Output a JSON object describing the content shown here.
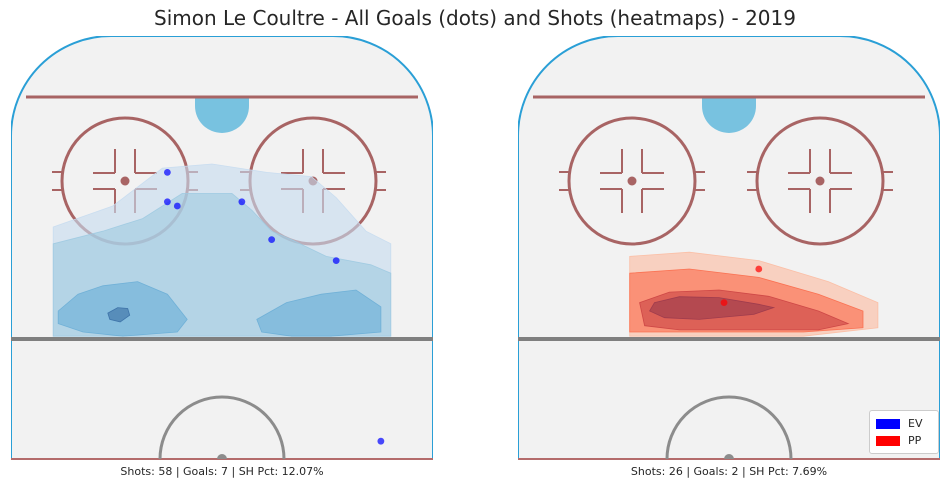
{
  "title": "Simon Le Coultre - All Goals (dots) and Shots (heatmaps) - 2019",
  "colors": {
    "EV": "#0000ff",
    "PP": "#ff0000"
  },
  "legend": {
    "entries": [
      {
        "label": "EV",
        "color": "#0000ff"
      },
      {
        "label": "PP",
        "color": "#ff0000"
      }
    ]
  },
  "captions": {
    "left": "Shots: 58 | Goals: 7 | SH Pct: 12.07%",
    "right": "Shots: 26 | Goals: 2 | SH Pct: 7.69%"
  },
  "chart_data": [
    {
      "type": "scatter",
      "panel": "left",
      "strength": "EV",
      "title": "",
      "shots": 58,
      "goals": 7,
      "sh_pct": 12.07,
      "xlim": [
        -42.5,
        42.5
      ],
      "ylim": [
        0,
        100
      ],
      "goal_points": [
        {
          "x": -11,
          "y": 68
        },
        {
          "x": -9,
          "y": 60
        },
        {
          "x": 4,
          "y": 61
        },
        {
          "x": 10,
          "y": 52
        },
        {
          "x": 23,
          "y": 47
        },
        {
          "x": 32,
          "y": 4
        },
        {
          "x": -11,
          "y": 61
        }
      ],
      "heat_levels": [
        {
          "level": 1,
          "color": "#c6dbef",
          "points": [
            [
              -34,
              55
            ],
            [
              -22,
              60
            ],
            [
              -12,
              69
            ],
            [
              -2,
              70
            ],
            [
              9,
              68
            ],
            [
              18,
              67
            ],
            [
              23,
              62
            ],
            [
              29,
              54
            ],
            [
              34,
              51
            ],
            [
              34,
              29
            ],
            [
              -34,
              29
            ]
          ]
        },
        {
          "level": 2,
          "color": "#9ecae1",
          "points": [
            [
              -34,
              51
            ],
            [
              -24,
              54
            ],
            [
              -16,
              57
            ],
            [
              -8,
              63
            ],
            [
              2,
              63
            ],
            [
              6,
              59
            ],
            [
              10,
              54
            ],
            [
              14,
              52
            ],
            [
              21,
              48
            ],
            [
              30,
              46
            ],
            [
              34,
              44
            ],
            [
              34,
              29
            ],
            [
              -34,
              29
            ]
          ]
        },
        {
          "level": 3,
          "color": "#6baed6",
          "points": [
            [
              -33,
              35
            ],
            [
              -29,
              39
            ],
            [
              -24,
              41
            ],
            [
              -17,
              42
            ],
            [
              -11,
              39
            ],
            [
              -7,
              33
            ],
            [
              -9,
              30
            ],
            [
              -20,
              29
            ],
            [
              -28,
              30
            ],
            [
              -33,
              32
            ]
          ]
        },
        {
          "level": 3,
          "color": "#6baed6",
          "points": [
            [
              7,
              33
            ],
            [
              13,
              37
            ],
            [
              20,
              39
            ],
            [
              27,
              40
            ],
            [
              32,
              36
            ],
            [
              32,
              30
            ],
            [
              22,
              29
            ],
            [
              14,
              29
            ],
            [
              8,
              30
            ]
          ]
        },
        {
          "level": 4,
          "color": "#3a6fa5",
          "points": [
            [
              -23,
              34.5
            ],
            [
              -21,
              35.8
            ],
            [
              -19,
              35.6
            ],
            [
              -18.6,
              34
            ],
            [
              -20.5,
              32.4
            ],
            [
              -22.6,
              33
            ]
          ]
        }
      ]
    },
    {
      "type": "scatter",
      "panel": "right",
      "strength": "PP",
      "title": "",
      "shots": 26,
      "goals": 2,
      "sh_pct": 7.69,
      "xlim": [
        -42.5,
        42.5
      ],
      "ylim": [
        0,
        100
      ],
      "goal_points": [
        {
          "x": 6,
          "y": 45
        },
        {
          "x": -1,
          "y": 37
        }
      ],
      "heat_levels": [
        {
          "level": 1,
          "color": "#fcbba1",
          "points": [
            [
              -20,
              48
            ],
            [
              -8,
              49
            ],
            [
              6,
              47
            ],
            [
              20,
              42
            ],
            [
              30,
              37
            ],
            [
              30,
              31
            ],
            [
              15,
              29
            ],
            [
              -20,
              29
            ]
          ]
        },
        {
          "level": 2,
          "color": "#fb6a4a",
          "points": [
            [
              -20,
              44
            ],
            [
              -8,
              45
            ],
            [
              6,
              43
            ],
            [
              18,
              39
            ],
            [
              27,
              35
            ],
            [
              27,
              31
            ],
            [
              15,
              30
            ],
            [
              -20,
              30
            ]
          ]
        },
        {
          "level": 3,
          "color": "#cb4343",
          "points": [
            [
              -18,
              37
            ],
            [
              -12,
              39.5
            ],
            [
              -2,
              40
            ],
            [
              8,
              38.5
            ],
            [
              18,
              35
            ],
            [
              24,
              32
            ],
            [
              18,
              30.5
            ],
            [
              -10,
              30.5
            ],
            [
              -17,
              31.5
            ]
          ]
        },
        {
          "level": 4,
          "color": "#9b3a4c",
          "points": [
            [
              -15,
              37
            ],
            [
              -10,
              38.4
            ],
            [
              -2,
              38.2
            ],
            [
              6,
              36.6
            ],
            [
              9,
              35.8
            ],
            [
              5,
              34.2
            ],
            [
              -6,
              33
            ],
            [
              -13,
              33.4
            ],
            [
              -16,
              35
            ]
          ]
        }
      ]
    }
  ]
}
